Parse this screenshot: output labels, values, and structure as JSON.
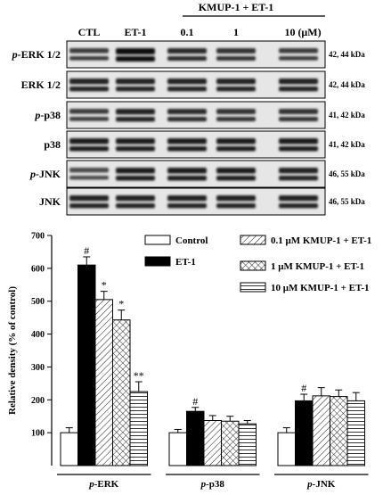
{
  "blot": {
    "header_group": "KMUP-1 + ET-1",
    "lanes": [
      "CTL",
      "ET-1",
      "0.1",
      "1",
      "10 (μM)"
    ],
    "rows": [
      {
        "label_prefix": "p-",
        "label_main": "ERK 1/2",
        "kda": "42, 44 kDa",
        "intensity": [
          0.55,
          1.0,
          0.7,
          0.65,
          0.55
        ]
      },
      {
        "label_prefix": "",
        "label_main": "ERK 1/2",
        "kda": "42, 44 kDa",
        "intensity": [
          0.8,
          0.8,
          0.8,
          0.8,
          0.8
        ]
      },
      {
        "label_prefix": "p-",
        "label_main": "p38",
        "kda": "41, 42 kDa",
        "intensity": [
          0.55,
          0.8,
          0.7,
          0.65,
          0.65
        ]
      },
      {
        "label_prefix": "",
        "label_main": "p38",
        "kda": "41, 42 kDa",
        "intensity": [
          0.85,
          0.85,
          0.85,
          0.85,
          0.85
        ]
      },
      {
        "label_prefix": "p-",
        "label_main": "JNK",
        "kda": "46, 55 kDa",
        "intensity": [
          0.45,
          0.85,
          0.85,
          0.85,
          0.8
        ]
      },
      {
        "label_prefix": "",
        "label_main": "JNK",
        "kda": "46, 55 kDa",
        "intensity": [
          0.8,
          0.8,
          0.8,
          0.8,
          0.8
        ]
      }
    ]
  },
  "chart_data": {
    "type": "bar",
    "ylabel": "Relative density (% of control)",
    "ylim": [
      0,
      700
    ],
    "yticks": [
      100,
      200,
      300,
      400,
      500,
      600,
      700
    ],
    "categories": [
      {
        "prefix": "p-",
        "main": "ERK"
      },
      {
        "prefix": "p-",
        "main": "p38"
      },
      {
        "prefix": "p-",
        "main": "JNK"
      }
    ],
    "legend_position": "top-right",
    "series": [
      {
        "name": "Control",
        "pattern": "white",
        "values": [
          100,
          100,
          100
        ],
        "errors": [
          15,
          10,
          15
        ],
        "marks": [
          "",
          "",
          ""
        ]
      },
      {
        "name": "ET-1",
        "pattern": "black",
        "values": [
          610,
          165,
          197
        ],
        "errors": [
          25,
          12,
          20
        ],
        "marks": [
          "#",
          "#",
          "#"
        ]
      },
      {
        "name": "0.1 μM KMUP-1 + ET-1",
        "pattern": "diagonal",
        "values": [
          505,
          137,
          212
        ],
        "errors": [
          25,
          15,
          25
        ],
        "marks": [
          "*",
          "",
          ""
        ]
      },
      {
        "name": "1 μM KMUP-1 + ET-1",
        "pattern": "crosshatch",
        "values": [
          443,
          135,
          210
        ],
        "errors": [
          30,
          15,
          20
        ],
        "marks": [
          "*",
          "",
          ""
        ]
      },
      {
        "name": "10 μM KMUP-1 + ET-1",
        "pattern": "horizontal",
        "values": [
          225,
          127,
          197
        ],
        "errors": [
          30,
          10,
          25
        ],
        "marks": [
          "**",
          "",
          ""
        ]
      }
    ]
  }
}
